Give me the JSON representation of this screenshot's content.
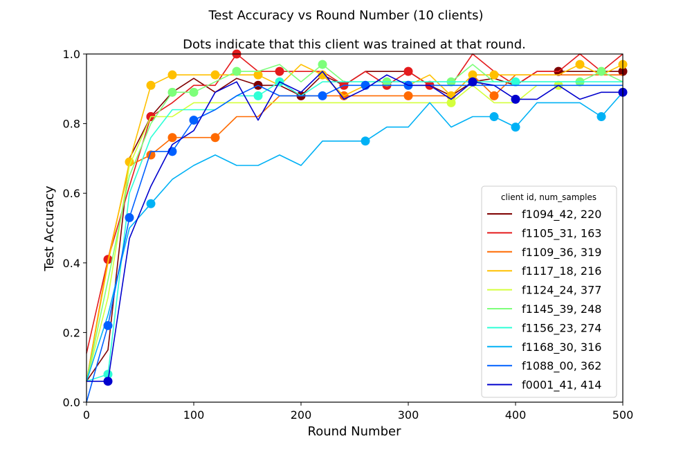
{
  "chart_data": {
    "type": "line",
    "title": "Test Accuracy vs Round Number (10 clients)",
    "subtitle": "Dots indicate that this client was trained at that round.",
    "xlabel": "Round Number",
    "ylabel": "Test Accuracy",
    "xlim": [
      0,
      500
    ],
    "ylim": [
      0.0,
      1.0
    ],
    "xticks": [
      0,
      100,
      200,
      300,
      400,
      500
    ],
    "xtick_labels": [
      "0",
      "100",
      "200",
      "300",
      "400",
      "500"
    ],
    "yticks": [
      0.0,
      0.2,
      0.4,
      0.6,
      0.8,
      1.0
    ],
    "ytick_labels": [
      "0.0",
      "0.2",
      "0.4",
      "0.6",
      "0.8",
      "1.0"
    ],
    "grid": false,
    "legend": {
      "title": "client id, num_samples",
      "placement": "lower-right"
    },
    "x": [
      0,
      20,
      40,
      60,
      80,
      100,
      120,
      140,
      160,
      180,
      200,
      220,
      240,
      260,
      280,
      300,
      320,
      340,
      360,
      380,
      400,
      420,
      440,
      460,
      480,
      500
    ],
    "series": [
      {
        "name": "f1094_42, 220",
        "color": "#7f0000",
        "values": [
          0.06,
          0.15,
          0.7,
          0.82,
          0.89,
          0.93,
          0.89,
          0.93,
          0.91,
          0.91,
          0.88,
          0.94,
          0.91,
          0.95,
          0.95,
          0.95,
          0.91,
          0.88,
          0.92,
          0.93,
          0.91,
          0.95,
          0.95,
          0.95,
          0.95,
          0.95
        ],
        "dots": [
          60,
          160,
          200,
          360,
          440,
          500
        ]
      },
      {
        "name": "f1105_31, 163",
        "color": "#e41a1c",
        "values": [
          0.14,
          0.41,
          0.62,
          0.82,
          0.86,
          0.91,
          0.91,
          1.0,
          0.95,
          0.95,
          0.95,
          0.95,
          0.91,
          0.95,
          0.91,
          0.95,
          0.91,
          0.91,
          1.0,
          0.95,
          0.91,
          0.95,
          0.95,
          1.0,
          0.95,
          1.0
        ],
        "dots": [
          20,
          60,
          140,
          180,
          240,
          280,
          300,
          320
        ]
      },
      {
        "name": "f1109_36, 319",
        "color": "#ff6a00",
        "values": [
          0.06,
          0.41,
          0.68,
          0.71,
          0.76,
          0.76,
          0.76,
          0.82,
          0.82,
          0.88,
          0.88,
          0.88,
          0.88,
          0.88,
          0.88,
          0.88,
          0.88,
          0.88,
          0.94,
          0.88,
          0.94,
          0.94,
          0.94,
          0.94,
          0.94,
          0.94
        ],
        "dots": [
          60,
          80,
          120,
          240,
          300,
          380
        ]
      },
      {
        "name": "f1117_18, 216",
        "color": "#ffc000",
        "values": [
          0.06,
          0.4,
          0.69,
          0.91,
          0.94,
          0.94,
          0.94,
          0.94,
          0.94,
          0.91,
          0.97,
          0.94,
          0.88,
          0.91,
          0.91,
          0.91,
          0.94,
          0.88,
          0.94,
          0.94,
          0.94,
          0.94,
          0.94,
          0.97,
          0.94,
          0.97
        ],
        "dots": [
          40,
          60,
          80,
          120,
          160,
          220,
          340,
          360,
          380,
          460,
          500
        ]
      },
      {
        "name": "f1124_24, 377",
        "color": "#d4ff3c",
        "values": [
          0.06,
          0.3,
          0.68,
          0.82,
          0.82,
          0.86,
          0.86,
          0.86,
          0.86,
          0.86,
          0.86,
          0.86,
          0.86,
          0.86,
          0.86,
          0.86,
          0.86,
          0.86,
          0.91,
          0.86,
          0.86,
          0.91,
          0.91,
          0.91,
          0.91,
          0.91
        ],
        "dots": [
          340,
          440
        ]
      },
      {
        "name": "f1145_39, 248",
        "color": "#7dff7a",
        "values": [
          0.06,
          0.35,
          0.65,
          0.8,
          0.89,
          0.89,
          0.92,
          0.95,
          0.95,
          0.97,
          0.92,
          0.97,
          0.92,
          0.92,
          0.92,
          0.92,
          0.92,
          0.92,
          0.97,
          0.92,
          0.92,
          0.92,
          0.92,
          0.92,
          0.95,
          0.92
        ],
        "dots": [
          80,
          100,
          140,
          220,
          280,
          340,
          460,
          480
        ]
      },
      {
        "name": "f1156_23, 274",
        "color": "#2effd6",
        "values": [
          0.06,
          0.08,
          0.6,
          0.76,
          0.84,
          0.84,
          0.84,
          0.88,
          0.88,
          0.92,
          0.88,
          0.92,
          0.92,
          0.92,
          0.92,
          0.92,
          0.92,
          0.92,
          0.92,
          0.92,
          0.92,
          0.92,
          0.92,
          0.92,
          0.92,
          0.92
        ],
        "dots": [
          20,
          160,
          180,
          400
        ]
      },
      {
        "name": "f1168_30, 316",
        "color": "#00b1f5",
        "values": [
          0.06,
          0.25,
          0.5,
          0.57,
          0.64,
          0.68,
          0.71,
          0.68,
          0.68,
          0.71,
          0.68,
          0.75,
          0.75,
          0.75,
          0.79,
          0.79,
          0.86,
          0.79,
          0.82,
          0.82,
          0.79,
          0.86,
          0.86,
          0.86,
          0.82,
          0.89
        ],
        "dots": [
          60,
          260,
          380,
          400,
          480
        ]
      },
      {
        "name": "f1088_00, 362",
        "color": "#0060ff",
        "values": [
          0.0,
          0.22,
          0.53,
          0.72,
          0.72,
          0.81,
          0.84,
          0.88,
          0.91,
          0.88,
          0.88,
          0.88,
          0.91,
          0.91,
          0.91,
          0.91,
          0.91,
          0.91,
          0.91,
          0.91,
          0.91,
          0.91,
          0.91,
          0.91,
          0.91,
          0.91
        ],
        "dots": [
          20,
          40,
          80,
          100,
          220,
          260,
          300
        ]
      },
      {
        "name": "f0001_41, 414",
        "color": "#0000cd",
        "values": [
          0.06,
          0.06,
          0.47,
          0.62,
          0.74,
          0.78,
          0.89,
          0.92,
          0.81,
          0.92,
          0.89,
          0.95,
          0.87,
          0.9,
          0.94,
          0.91,
          0.91,
          0.87,
          0.92,
          0.91,
          0.87,
          0.87,
          0.91,
          0.87,
          0.89,
          0.89
        ],
        "dots": [
          20,
          360,
          400,
          500
        ]
      }
    ]
  }
}
